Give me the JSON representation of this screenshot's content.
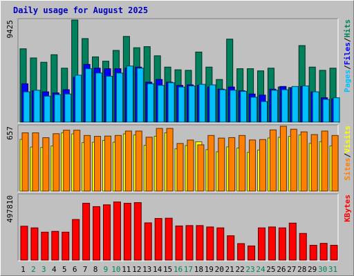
{
  "title": "Daily usage for August 2025",
  "colors": {
    "hits": "#00805c",
    "files": "#0000ff",
    "pages": "#00c0ff",
    "visits": "#ffff00",
    "sites": "#ff8000",
    "kbytes": "#ff0000",
    "background": "#c0c0c0",
    "weekend_day_label": "#00805c",
    "weekday_day_label": "#000000"
  },
  "chart_data": [
    {
      "type": "bar",
      "panel": "hits-files-pages",
      "categories": [
        "1",
        "2",
        "3",
        "4",
        "5",
        "6",
        "7",
        "8",
        "9",
        "10",
        "11",
        "12",
        "13",
        "14",
        "15",
        "16",
        "17",
        "18",
        "19",
        "20",
        "21",
        "22",
        "23",
        "24",
        "25",
        "26",
        "27",
        "28",
        "29",
        "30",
        "31"
      ],
      "weekend_days": [
        "2",
        "3",
        "9",
        "10",
        "16",
        "17",
        "23",
        "24",
        "30",
        "31"
      ],
      "ymax_label": "9425",
      "ylim": [
        0,
        9425
      ],
      "legend": [
        "Pages",
        "/",
        "Files",
        "/",
        "Hits"
      ],
      "series": [
        {
          "name": "Hits",
          "color": "#00805c",
          "values": [
            6750,
            5900,
            5500,
            6200,
            4950,
            9425,
            7700,
            6000,
            5600,
            6600,
            7900,
            6850,
            6950,
            6100,
            5050,
            4800,
            4750,
            6450,
            5050,
            3900,
            7650,
            4900,
            4900,
            4700,
            4950,
            3200,
            3150,
            7050,
            5050,
            4750,
            4950
          ]
        },
        {
          "name": "Files",
          "color": "#0000ff",
          "values": [
            3500,
            2850,
            2750,
            2650,
            2950,
            4100,
            5300,
            4950,
            4900,
            4900,
            4950,
            5050,
            3650,
            3900,
            3650,
            3350,
            3400,
            3350,
            3200,
            3000,
            3200,
            2850,
            2550,
            2450,
            3000,
            3250,
            3100,
            3250,
            2750,
            2200,
            2100
          ]
        },
        {
          "name": "Pages",
          "color": "#00c0ff",
          "values": [
            2750,
            2900,
            2350,
            2500,
            2550,
            4300,
            4900,
            4500,
            4200,
            4500,
            5150,
            4950,
            3500,
            3350,
            3600,
            3200,
            3300,
            3450,
            3400,
            2950,
            2900,
            2800,
            2250,
            1850,
            2900,
            2950,
            3250,
            3300,
            2750,
            2050,
            2200
          ]
        }
      ]
    },
    {
      "type": "bar",
      "panel": "visits-sites",
      "categories": [
        "1",
        "2",
        "3",
        "4",
        "5",
        "6",
        "7",
        "8",
        "9",
        "10",
        "11",
        "12",
        "13",
        "14",
        "15",
        "16",
        "17",
        "18",
        "19",
        "20",
        "21",
        "22",
        "23",
        "24",
        "25",
        "26",
        "27",
        "28",
        "29",
        "30",
        "31"
      ],
      "ymax_label": "657",
      "ylim": [
        0,
        657
      ],
      "legend": [
        "Sites",
        "/",
        "Visits"
      ],
      "series": [
        {
          "name": "Visits",
          "color": "#ffff00",
          "values": [
            523,
            444,
            440,
            456,
            590,
            579,
            490,
            494,
            512,
            494,
            579,
            568,
            462,
            555,
            590,
            426,
            460,
            498,
            418,
            396,
            446,
            434,
            390,
            413,
            537,
            544,
            554,
            568,
            482,
            500,
            456
          ]
        },
        {
          "name": "Sites",
          "color": "#ff8000",
          "values": [
            590,
            590,
            540,
            581,
            617,
            617,
            563,
            554,
            557,
            563,
            608,
            608,
            545,
            635,
            635,
            481,
            516,
            467,
            563,
            536,
            541,
            563,
            517,
            521,
            620,
            657,
            627,
            600,
            572,
            608,
            563
          ]
        }
      ]
    },
    {
      "type": "bar",
      "panel": "kbytes",
      "categories": [
        "1",
        "2",
        "3",
        "4",
        "5",
        "6",
        "7",
        "8",
        "9",
        "10",
        "11",
        "12",
        "13",
        "14",
        "15",
        "16",
        "17",
        "18",
        "19",
        "20",
        "21",
        "22",
        "23",
        "24",
        "25",
        "26",
        "27",
        "28",
        "29",
        "30",
        "31"
      ],
      "ymax_label": "497810",
      "ylim": [
        0,
        497810
      ],
      "legend": [
        "KBytes"
      ],
      "series": [
        {
          "name": "KBytes",
          "color": "#ff0000",
          "values": [
            258000,
            245000,
            212000,
            218000,
            212000,
            310000,
            436000,
            410000,
            424000,
            446000,
            436000,
            441000,
            284000,
            318000,
            320000,
            260000,
            263000,
            263000,
            252000,
            245000,
            184000,
            123000,
            105000,
            245000,
            252000,
            245000,
            282000,
            202000,
            110000,
            125000,
            110000
          ]
        }
      ]
    }
  ]
}
